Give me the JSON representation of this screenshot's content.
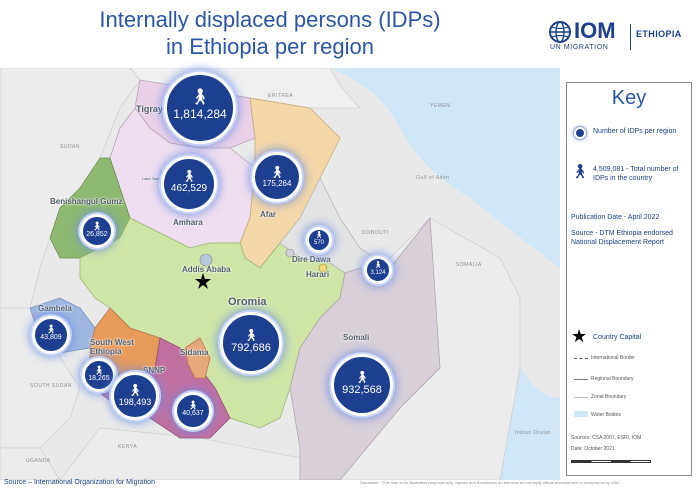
{
  "title_line1": "Internally displaced persons (IDPs)",
  "title_line2": "in Ethiopia per region",
  "logo": {
    "mark": "IOM",
    "sub": "UN MIGRATION",
    "country": "ETHIOPIA"
  },
  "key": {
    "title": "Key",
    "idps_per_region": "Number of IDPs per region",
    "total": "4,509,081 - Total number of IDPs in the country",
    "publication": "Publication Date - April 2022",
    "source": "Source - DTM Ethiopia endorsed National Displacement Report",
    "capital": "Country Capital",
    "international_border": "International Border",
    "regional_boundary": "Regional Boundary",
    "zonal_boundary": "Zonal Boundary",
    "water_bodies": "Water Bodies",
    "sources": "Sources: CSA 2007, ESRI, IOM",
    "date": "Date: October 2021"
  },
  "bubbles": [
    {
      "region": "Tigray",
      "value": "1,814,284"
    },
    {
      "region": "Amhara",
      "value": "462,529"
    },
    {
      "region": "Afar",
      "value": "175,264"
    },
    {
      "region": "Benishangul Gumz",
      "value": "26,852"
    },
    {
      "region": "Dire Dawa",
      "value": "570"
    },
    {
      "region": "Harari",
      "value": "3,124"
    },
    {
      "region": "Gambela",
      "value": "43,809"
    },
    {
      "region": "South West Ethiopia",
      "value": "18,265"
    },
    {
      "region": "SNNP",
      "value": "198,493"
    },
    {
      "region": "Sidama",
      "value": "40,637"
    },
    {
      "region": "Oromia",
      "value": "792,686"
    },
    {
      "region": "Somali",
      "value": "932,568"
    }
  ],
  "region_labels": {
    "tigray": "Tigray",
    "amhara": "Amhara",
    "afar": "Afar",
    "benishangul": "Benishangul Gumz",
    "dire_dawa": "Dire Dawa",
    "harari": "Harari",
    "addis": "Addis Ababa",
    "oromia": "Oromia",
    "gambela": "Gambela",
    "south_west": "South West Ethiopia",
    "snnp": "SNNP",
    "sidama": "Sidama",
    "somali": "Somali",
    "lake_tana": "Lake Tana"
  },
  "countries": {
    "eritrea": "ERITREA",
    "yemen": "YEMEN",
    "sudan": "SUDAN",
    "djibouti": "DJIBOUTI",
    "somalia": "SOMALIA",
    "south_sudan": "SOUTH SUDAN",
    "kenya": "KENYA",
    "uganda": "UGANDA",
    "gulf_of_aden": "Gulf of Aden",
    "indian_ocean": "Indian Ocean"
  },
  "footer_left": "Source – International Organization for Migration",
  "footer_right": "Disclaimer : This map is for illustration purposes only. Names and Boundaries on this map do not imply official endorsement or acceptance by IOM.",
  "colors": {
    "bubble": "#1d3f8f",
    "title": "#2b56a8",
    "tigray": "#e8d0e6",
    "amhara": "#eeddee",
    "afar": "#f2d7a7",
    "benishangul": "#8fb871",
    "oromia": "#cfe5a6",
    "gambela": "#9fb6e0",
    "south_west": "#e79b5b",
    "snnp": "#c06f9f",
    "sidama": "#e6a87a",
    "somali": "#d8cfd8",
    "neighbor": "#e7e7e7",
    "sea": "#cfe6f7"
  }
}
